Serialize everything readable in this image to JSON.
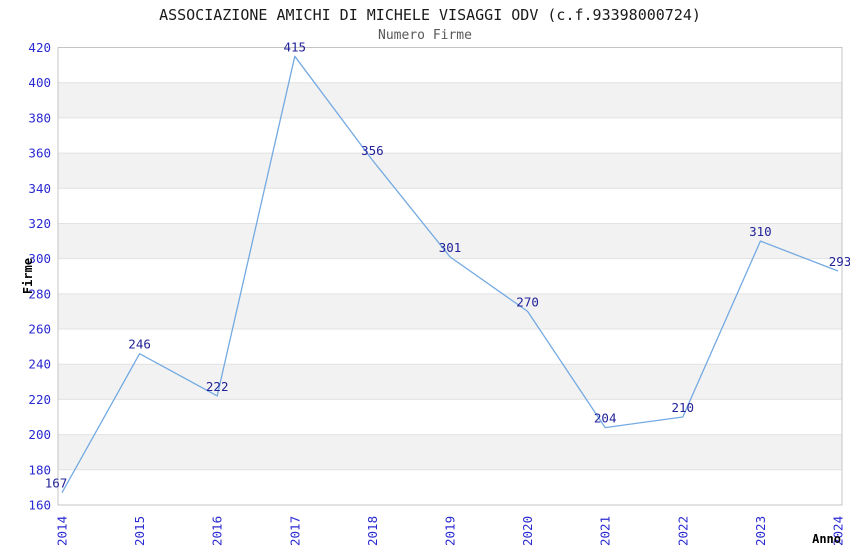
{
  "chart_data": {
    "type": "line",
    "title": "ASSOCIAZIONE AMICHI DI MICHELE VISAGGI ODV (c.f.93398000724)",
    "subtitle": "Numero Firme",
    "xlabel": "Anno",
    "ylabel": "Firme",
    "categories": [
      "2014",
      "2015",
      "2016",
      "2017",
      "2018",
      "2019",
      "2020",
      "2021",
      "2022",
      "2023",
      "2024"
    ],
    "values": [
      167,
      246,
      222,
      415,
      356,
      301,
      270,
      204,
      210,
      310,
      293
    ],
    "yticks": [
      160,
      180,
      200,
      220,
      240,
      260,
      280,
      300,
      320,
      340,
      360,
      380,
      400,
      420
    ],
    "ylim": [
      160,
      420
    ],
    "grid": "horizontal-with-alternating-bands",
    "legend": "none",
    "colors": {
      "line": "#74aae2",
      "tick_label": "#2a2ad2",
      "data_label": "#222299",
      "band": "#f2f2f2",
      "gridline": "#e2e2e2",
      "border": "#c4c4c4",
      "title": "#1a1a1a",
      "subtitle": "#595959",
      "axis_title": "#000000",
      "background": "#ffffff"
    }
  }
}
